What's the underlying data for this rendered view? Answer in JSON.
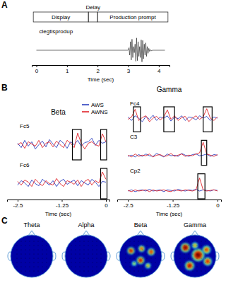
{
  "chart_data": [
    {
      "type": "line",
      "panel": "A",
      "timeline": [
        {
          "label": "Display",
          "start": -0.1,
          "end": 1.7
        },
        {
          "label": "Delay",
          "start": 1.7,
          "end": 2.0
        },
        {
          "label": "Production prompt",
          "start": 2.0,
          "end": 4.3
        }
      ],
      "x": [
        0,
        3.0,
        3.025,
        3.05,
        3.075,
        3.1,
        3.125,
        3.15,
        3.175,
        3.2,
        3.225,
        3.25,
        3.275,
        3.3,
        3.325,
        3.35,
        3.375,
        3.4,
        3.425,
        3.45,
        3.475,
        3.5,
        3.525,
        3.55,
        3.575,
        3.6,
        3.625,
        3.65,
        3.675,
        3.7,
        3.725,
        3.75,
        3.8,
        4.2
      ],
      "series": [
        {
          "name": "clegtisprodup",
          "color": "#333333",
          "values": [
            0,
            0,
            0.2,
            -0.4,
            0.7,
            -0.8,
            0.9,
            -0.6,
            0.3,
            -0.2,
            0.5,
            -0.9,
            1.0,
            -0.85,
            0.7,
            -0.5,
            0.3,
            -0.6,
            0.85,
            -0.95,
            0.8,
            -0.7,
            0.5,
            -0.4,
            0.6,
            -0.5,
            0.3,
            -0.25,
            0.15,
            -0.1,
            0.05,
            -0.05,
            0,
            0
          ]
        }
      ],
      "x_label": "Time (sec)",
      "xlim": [
        -0.15,
        4.35
      ],
      "xticks": [
        0,
        1,
        2,
        3,
        4
      ],
      "ylim": [
        -1.1,
        1.1
      ],
      "tick_labels": "x"
    },
    {
      "type": "line",
      "panel": "B",
      "series": [
        {
          "name": "AWS",
          "color": "#2b3fbf"
        },
        {
          "name": "AWNS",
          "color": "#e0242a"
        }
      ],
      "groups": [
        {
          "title": "Beta",
          "x": [
            -2.5,
            -2.4,
            -2.3,
            -2.2,
            -2.1,
            -2.0,
            -1.9,
            -1.8,
            -1.7,
            -1.6,
            -1.5,
            -1.4,
            -1.3,
            -1.2,
            -1.1,
            -1.0,
            -0.9,
            -0.8,
            -0.7,
            -0.6,
            -0.5,
            -0.4,
            -0.3,
            -0.2,
            -0.1,
            0
          ],
          "x_label": "Time (sec)",
          "xlim": [
            -2.8,
            0.1
          ],
          "xticks": [
            -2.5,
            -1.25,
            0
          ],
          "ylim": [
            -1,
            1
          ],
          "tick_labels": "x",
          "channels": [
            {
              "label": "Fc5",
              "values": [
                [
                  0.1,
                  -0.2,
                  0.3,
                  -0.1,
                  0.2,
                  -0.3,
                  0.0,
                  0.25,
                  -0.15,
                  0.35,
                  0.05,
                  -0.2,
                  0.3,
                  0.1,
                  -0.25,
                  0.2,
                  0.0,
                  0.3,
                  -0.1,
                  0.15,
                  0.2,
                  0.45,
                  -0.05,
                  0.3,
                  0.1,
                  0.2
                ],
                [
                  0.0,
                  0.15,
                  -0.25,
                  0.2,
                  0.05,
                  -0.1,
                  0.3,
                  -0.2,
                  0.1,
                  0.2,
                  -0.15,
                  0.25,
                  0.0,
                  -0.2,
                  0.3,
                  0.1,
                  -0.2,
                  0.8,
                  0.1,
                  -0.3,
                  0.1,
                  0.2,
                  0.0,
                  -0.1,
                  0.75,
                  0.2
                ]
              ],
              "highlights": [
                {
                  "start": -0.95,
                  "end": -0.7
                },
                {
                  "start": -0.15,
                  "end": 0.02
                }
              ]
            },
            {
              "label": "Fc6",
              "values": [
                [
                  -0.1,
                  0.2,
                  0.05,
                  -0.2,
                  0.25,
                  0.0,
                  -0.15,
                  0.3,
                  0.1,
                  -0.1,
                  0.2,
                  -0.2,
                  0.15,
                  0.3,
                  -0.05,
                  0.1,
                  0.25,
                  -0.15,
                  0.2,
                  0.05,
                  -0.1,
                  0.3,
                  0.1,
                  -0.2,
                  0.15,
                  0.1
                ],
                [
                  0.15,
                  -0.1,
                  0.25,
                  0.1,
                  -0.2,
                  0.3,
                  0.05,
                  -0.15,
                  0.2,
                  0.0,
                  -0.1,
                  0.35,
                  0.0,
                  -0.2,
                  0.2,
                  0.1,
                  -0.05,
                  0.25,
                  -0.2,
                  0.15,
                  0.3,
                  -0.1,
                  0.2,
                  0.05,
                  0.8,
                  0.3
                ]
              ],
              "highlights": [
                {
                  "start": -0.15,
                  "end": 0.03
                }
              ]
            }
          ]
        },
        {
          "title": "Gamma",
          "x": [
            -2.5,
            -2.4,
            -2.3,
            -2.2,
            -2.1,
            -2.0,
            -1.9,
            -1.8,
            -1.7,
            -1.6,
            -1.5,
            -1.4,
            -1.3,
            -1.2,
            -1.1,
            -1.0,
            -0.9,
            -0.8,
            -0.7,
            -0.6,
            -0.5,
            -0.4,
            -0.3,
            -0.2,
            -0.1,
            0
          ],
          "x_label": "Time (sec)",
          "xlim": [
            -2.8,
            0.1
          ],
          "xticks": [
            -2.5,
            -1.25,
            0
          ],
          "ylim": [
            -1,
            1
          ],
          "tick_labels": "x",
          "channels": [
            {
              "label": "Fc4",
              "values": [
                [
                  0.2,
                  -0.1,
                  0.3,
                  0.1,
                  -0.2,
                  0.25,
                  0.0,
                  0.35,
                  -0.1,
                  0.2,
                  0.1,
                  0.3,
                  -0.15,
                  0.2,
                  0.05,
                  0.3,
                  -0.1,
                  0.2,
                  0.15,
                  -0.05,
                  0.3,
                  0.1,
                  0.25,
                  -0.1,
                  0.2,
                  0.1
                ],
                [
                  0.0,
                  0.2,
                  0.85,
                  -0.1,
                  0.15,
                  0.3,
                  -0.2,
                  0.1,
                  0.25,
                  -0.05,
                  0.2,
                  0.8,
                  0.0,
                  0.3,
                  -0.1,
                  0.15,
                  0.25,
                  -0.2,
                  0.1,
                  0.3,
                  0.0,
                  0.2,
                  0.9,
                  0.1,
                  -0.1,
                  0.2
                ]
              ],
              "highlights": [
                {
                  "start": -2.35,
                  "end": -2.15
                },
                {
                  "start": -1.5,
                  "end": -1.2
                },
                {
                  "start": -0.4,
                  "end": -0.15
                }
              ]
            },
            {
              "label": "C3",
              "values": [
                [
                  -0.3,
                  -0.2,
                  -0.35,
                  -0.15,
                  -0.3,
                  -0.1,
                  -0.25,
                  -0.3,
                  -0.05,
                  -0.2,
                  -0.35,
                  -0.1,
                  -0.25,
                  -0.2,
                  -0.3,
                  -0.05,
                  -0.2,
                  -0.3,
                  -0.15,
                  -0.1,
                  -0.25,
                  -0.2,
                  -0.1,
                  -0.3,
                  -0.15,
                  -0.2
                ],
                [
                  -0.2,
                  -0.35,
                  -0.1,
                  -0.3,
                  -0.2,
                  -0.25,
                  -0.1,
                  -0.35,
                  -0.2,
                  -0.15,
                  -0.3,
                  -0.25,
                  -0.05,
                  -0.3,
                  -0.2,
                  -0.1,
                  -0.3,
                  -0.2,
                  -0.25,
                  -0.1,
                  0.0,
                  0.9,
                  -0.1,
                  -0.2,
                  -0.3,
                  -0.15
                ]
              ],
              "highlights": [
                {
                  "start": -0.45,
                  "end": -0.3
                }
              ]
            },
            {
              "label": "Cp2",
              "values": [
                [
                  -0.4,
                  -0.3,
                  -0.45,
                  -0.35,
                  -0.3,
                  -0.4,
                  -0.25,
                  -0.4,
                  -0.35,
                  -0.3,
                  -0.45,
                  -0.3,
                  -0.35,
                  -0.4,
                  -0.25,
                  -0.35,
                  -0.4,
                  -0.3,
                  -0.35,
                  -0.25,
                  -0.4,
                  -0.3,
                  -0.35,
                  -0.4,
                  -0.3,
                  -0.35
                ],
                [
                  -0.35,
                  -0.45,
                  -0.3,
                  -0.4,
                  -0.35,
                  -0.3,
                  -0.45,
                  -0.3,
                  -0.4,
                  -0.35,
                  -0.3,
                  -0.4,
                  -0.45,
                  -0.3,
                  -0.35,
                  -0.4,
                  -0.3,
                  -0.35,
                  -0.4,
                  -0.3,
                  0.7,
                  -0.3,
                  -0.4,
                  -0.35,
                  -0.3,
                  -0.4
                ]
              ],
              "highlights": [
                {
                  "start": -0.55,
                  "end": -0.35
                }
              ]
            }
          ]
        }
      ]
    },
    {
      "type": "topomap",
      "panel": "C",
      "clim": [
        0,
        1
      ],
      "maps": [
        {
          "title": "Theta",
          "spots": []
        },
        {
          "title": "Alpha",
          "spots": []
        },
        {
          "title": "Beta",
          "spots": [
            {
              "x": -0.45,
              "y": 0.25,
              "value": 0.9,
              "size": 0.17
            },
            {
              "x": 0.05,
              "y": 0.35,
              "value": 0.8,
              "size": 0.15
            },
            {
              "x": 0.5,
              "y": 0.2,
              "value": 0.85,
              "size": 0.17
            },
            {
              "x": 0.0,
              "y": -0.2,
              "value": 0.9,
              "size": 0.18
            },
            {
              "x": 0.35,
              "y": -0.45,
              "value": 0.7,
              "size": 0.13
            },
            {
              "x": -0.3,
              "y": -0.35,
              "value": 0.6,
              "size": 0.12
            }
          ]
        },
        {
          "title": "Gamma",
          "spots": [
            {
              "x": -0.45,
              "y": 0.4,
              "value": 1,
              "size": 0.22
            },
            {
              "x": 0.15,
              "y": 0.05,
              "value": 1,
              "size": 0.3
            },
            {
              "x": -0.25,
              "y": -0.45,
              "value": 0.9,
              "size": 0.22
            },
            {
              "x": 0.55,
              "y": 0.3,
              "value": 0.8,
              "size": 0.2
            },
            {
              "x": 0.6,
              "y": -0.25,
              "value": 0.85,
              "size": 0.2
            },
            {
              "x": 0.0,
              "y": 0.5,
              "value": 0.7,
              "size": 0.15
            }
          ]
        }
      ]
    }
  ]
}
